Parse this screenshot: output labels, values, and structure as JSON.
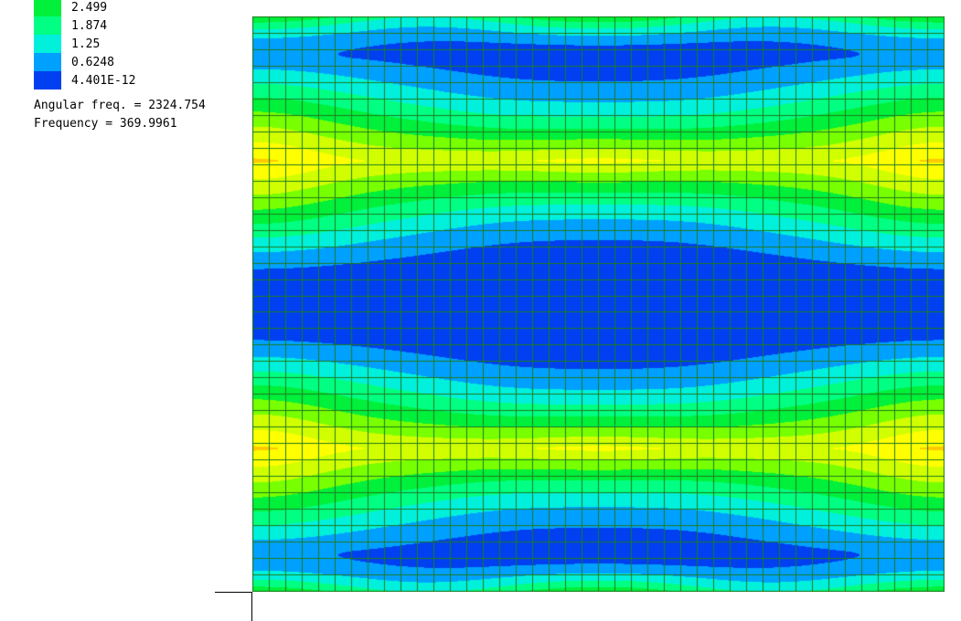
{
  "legend": {
    "items": [
      {
        "label": "2.499",
        "color": "#00f03c"
      },
      {
        "label": "1.874",
        "color": "#00ff82"
      },
      {
        "label": "1.25",
        "color": "#00f0dc"
      },
      {
        "label": "0.6248",
        "color": "#00a0ff"
      },
      {
        "label": "4.401E-12",
        "color": "#0040f0"
      }
    ]
  },
  "info": {
    "angular_freq": "Angular freq. = 2324.754",
    "frequency": "Frequency = 369.9961"
  },
  "plot": {
    "type": "contour",
    "mesh_columns": 42,
    "mesh_rows": 35,
    "mesh_line_color": "#1f7a1f",
    "band_colors": [
      "#0040f0",
      "#00a0ff",
      "#00f0dc",
      "#00ff82",
      "#00f03c",
      "#78ff00",
      "#d2ff00",
      "#ffff00",
      "#ffc800",
      "#ff8000",
      "#ff3c00"
    ]
  }
}
